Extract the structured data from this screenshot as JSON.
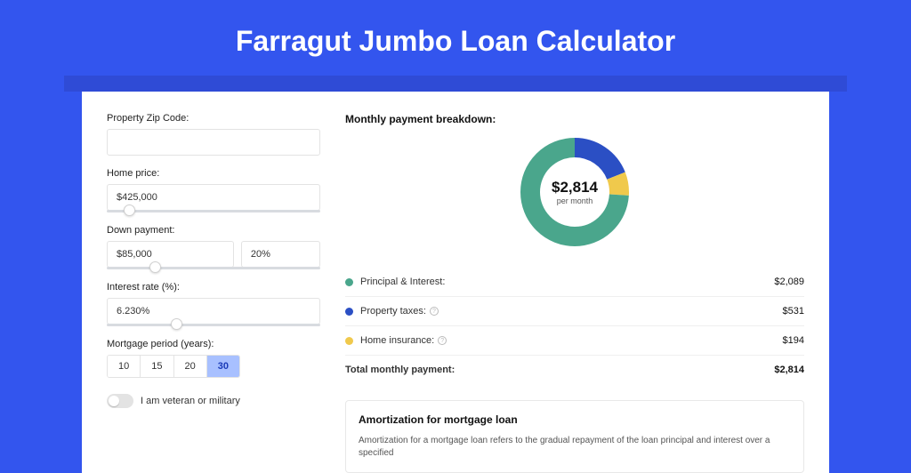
{
  "hero_title": "Farragut Jumbo Loan Calculator",
  "colors": {
    "page_bg": "#3355ee",
    "shadow_strip": "#2f4bd6",
    "card_bg": "#ffffff",
    "input_border": "#e3e3e3",
    "text_primary": "#111111",
    "text_secondary": "#333333",
    "active_period_bg": "#a8c0ff",
    "active_period_text": "#1a3bb8"
  },
  "form": {
    "zip_label": "Property Zip Code:",
    "zip_value": "",
    "home_price_label": "Home price:",
    "home_price_value": "$425,000",
    "home_price_slider_pct": 8,
    "down_label": "Down payment:",
    "down_value": "$85,000",
    "down_pct_value": "20%",
    "down_slider_pct": 20,
    "rate_label": "Interest rate (%):",
    "rate_value": "6.230%",
    "rate_slider_pct": 30,
    "period_label": "Mortgage period (years):",
    "period_options": [
      "10",
      "15",
      "20",
      "30"
    ],
    "period_active_index": 3,
    "veteran_label": "I am veteran or military",
    "veteran_on": false
  },
  "breakdown": {
    "title": "Monthly payment breakdown:",
    "donut_amount": "$2,814",
    "donut_sub": "per month",
    "series": [
      {
        "label": "Principal & Interest:",
        "value": "$2,089",
        "color": "#4aa68c",
        "pct": 74,
        "info": false
      },
      {
        "label": "Property taxes:",
        "value": "$531",
        "color": "#2b4fc4",
        "pct": 19,
        "info": true
      },
      {
        "label": "Home insurance:",
        "value": "$194",
        "color": "#f0c94c",
        "pct": 7,
        "info": true
      }
    ],
    "total_label": "Total monthly payment:",
    "total_value": "$2,814"
  },
  "amort": {
    "title": "Amortization for mortgage loan",
    "text": "Amortization for a mortgage loan refers to the gradual repayment of the loan principal and interest over a specified"
  },
  "donut_style": {
    "radius": 50,
    "stroke_width": 22,
    "background": "#ffffff"
  }
}
